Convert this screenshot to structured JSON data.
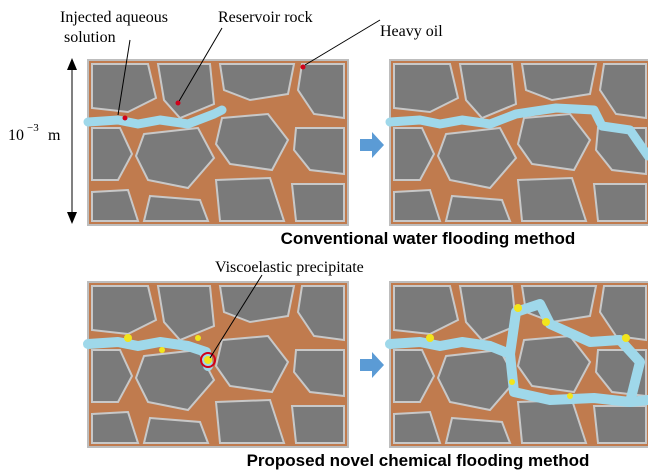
{
  "annotations": {
    "injected_line1": "Injected aqueous",
    "injected_line2": "solution",
    "reservoir_rock": "Reservoir rock",
    "heavy_oil": "Heavy oil",
    "viscoelastic_precipitate": "Viscoelastic precipitate"
  },
  "scale": {
    "base": "10",
    "exponent": "−3",
    "unit": "m"
  },
  "captions": {
    "conventional": "Conventional water flooding method",
    "proposed": "Proposed novel chemical flooding method"
  }
}
